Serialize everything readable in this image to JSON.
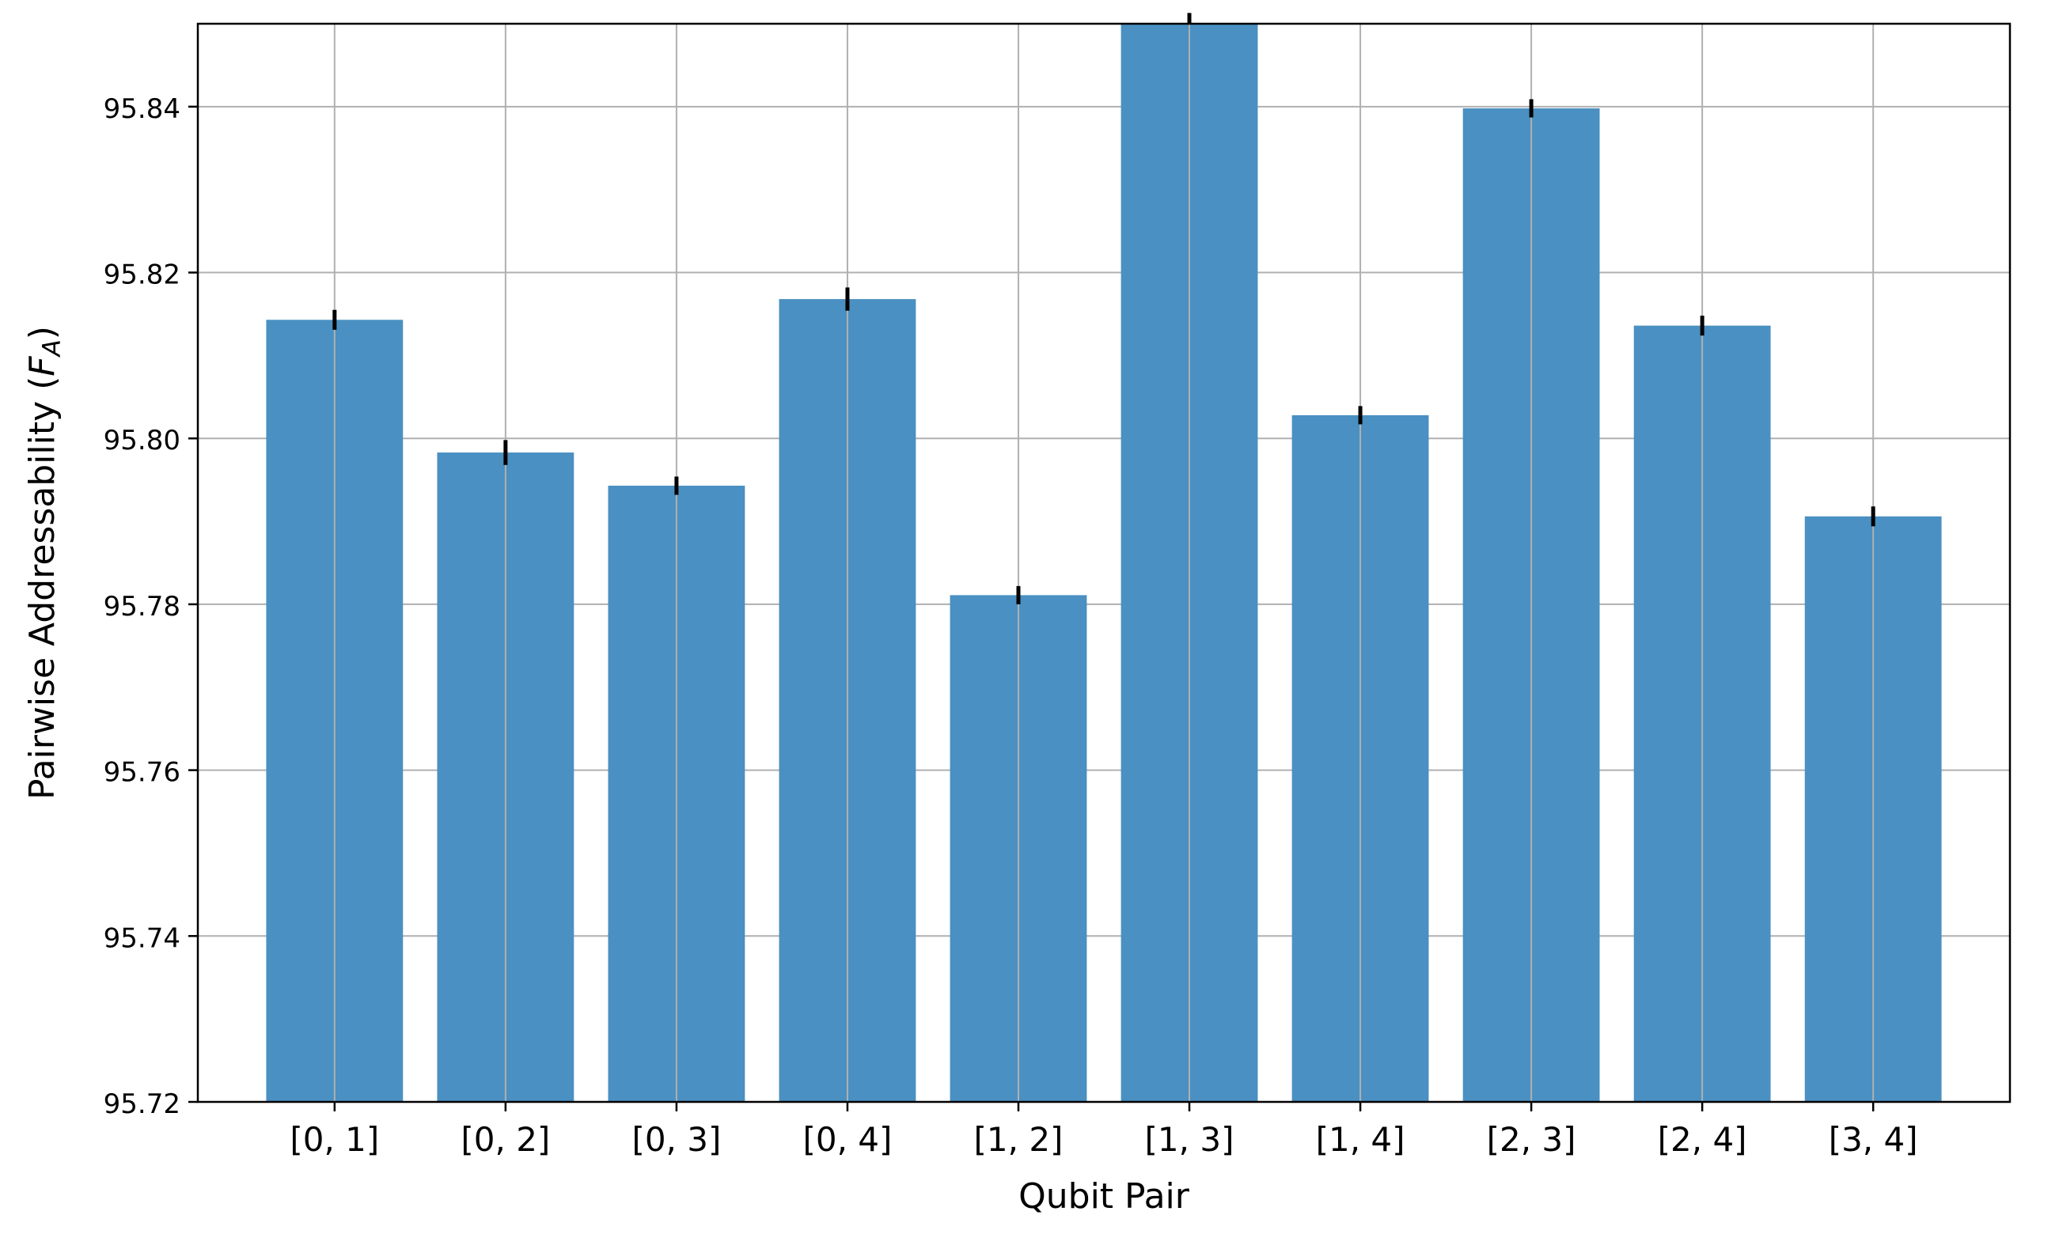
{
  "chart_data": {
    "type": "bar",
    "title": "",
    "xlabel": "Qubit Pair",
    "ylabel": {
      "text": "Pairwise Addressability (",
      "symbol": "F",
      "subscript": "A",
      "suffix": ")"
    },
    "categories": [
      "[0, 1]",
      "[0, 2]",
      "[0, 3]",
      "[0, 4]",
      "[1, 2]",
      "[1, 3]",
      "[1, 4]",
      "[2, 3]",
      "[2, 4]",
      "[3, 4]"
    ],
    "values": [
      95.8143,
      95.7983,
      95.7943,
      95.8168,
      95.7811,
      95.8525,
      95.8028,
      95.8398,
      95.8136,
      95.7906
    ],
    "errors": [
      0.0012,
      0.0015,
      0.0011,
      0.0014,
      0.0011,
      0.0012,
      0.0011,
      0.0011,
      0.0012,
      0.0012
    ],
    "ylim": [
      95.72,
      95.85
    ],
    "yticks": [
      95.72,
      95.74,
      95.76,
      95.78,
      95.8,
      95.82,
      95.84
    ],
    "ytick_labels": [
      "95.72",
      "95.74",
      "95.76",
      "95.78",
      "95.80",
      "95.82",
      "95.84"
    ],
    "grid": true,
    "bar_color": "#4a90c2",
    "error_color": "#000000",
    "grid_color": "#b0b0b0"
  }
}
